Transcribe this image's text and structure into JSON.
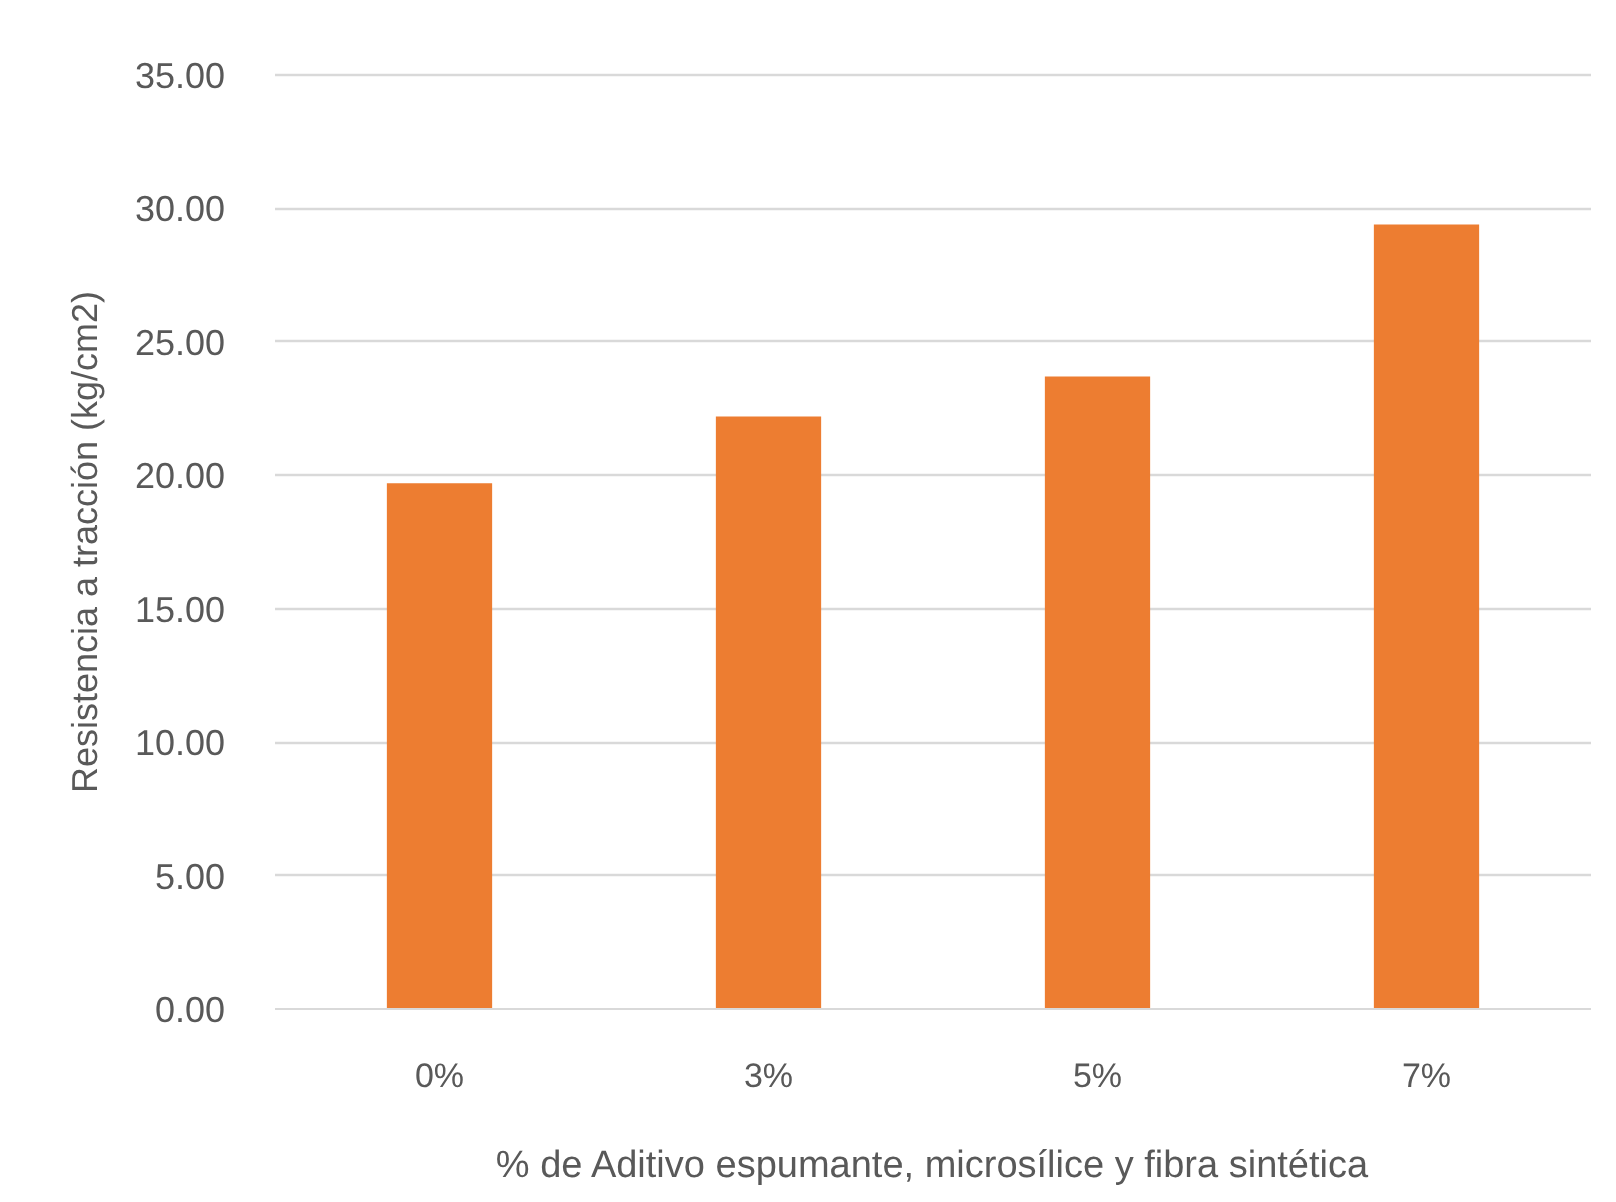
{
  "chart_data": {
    "type": "bar",
    "xlabel": "% de Aditivo espumante, microsílice y fibra sintética",
    "ylabel": "Resistencia a tracción (kg/cm2)",
    "categories": [
      "0%",
      "3%",
      "5%",
      "7%"
    ],
    "values": [
      19.7,
      22.2,
      23.7,
      29.4
    ],
    "color": "#ed7d31",
    "ylim": [
      0,
      35
    ],
    "yticks": [
      {
        "value": 0,
        "label": "0.00"
      },
      {
        "value": 5,
        "label": "5.00"
      },
      {
        "value": 10,
        "label": "10.00"
      },
      {
        "value": 15,
        "label": "15.00"
      },
      {
        "value": 20,
        "label": "20.00"
      },
      {
        "value": 25,
        "label": "25.00"
      },
      {
        "value": 30,
        "label": "30.00"
      },
      {
        "value": 35,
        "label": "35.00"
      }
    ],
    "grid": "y",
    "legend": false
  }
}
